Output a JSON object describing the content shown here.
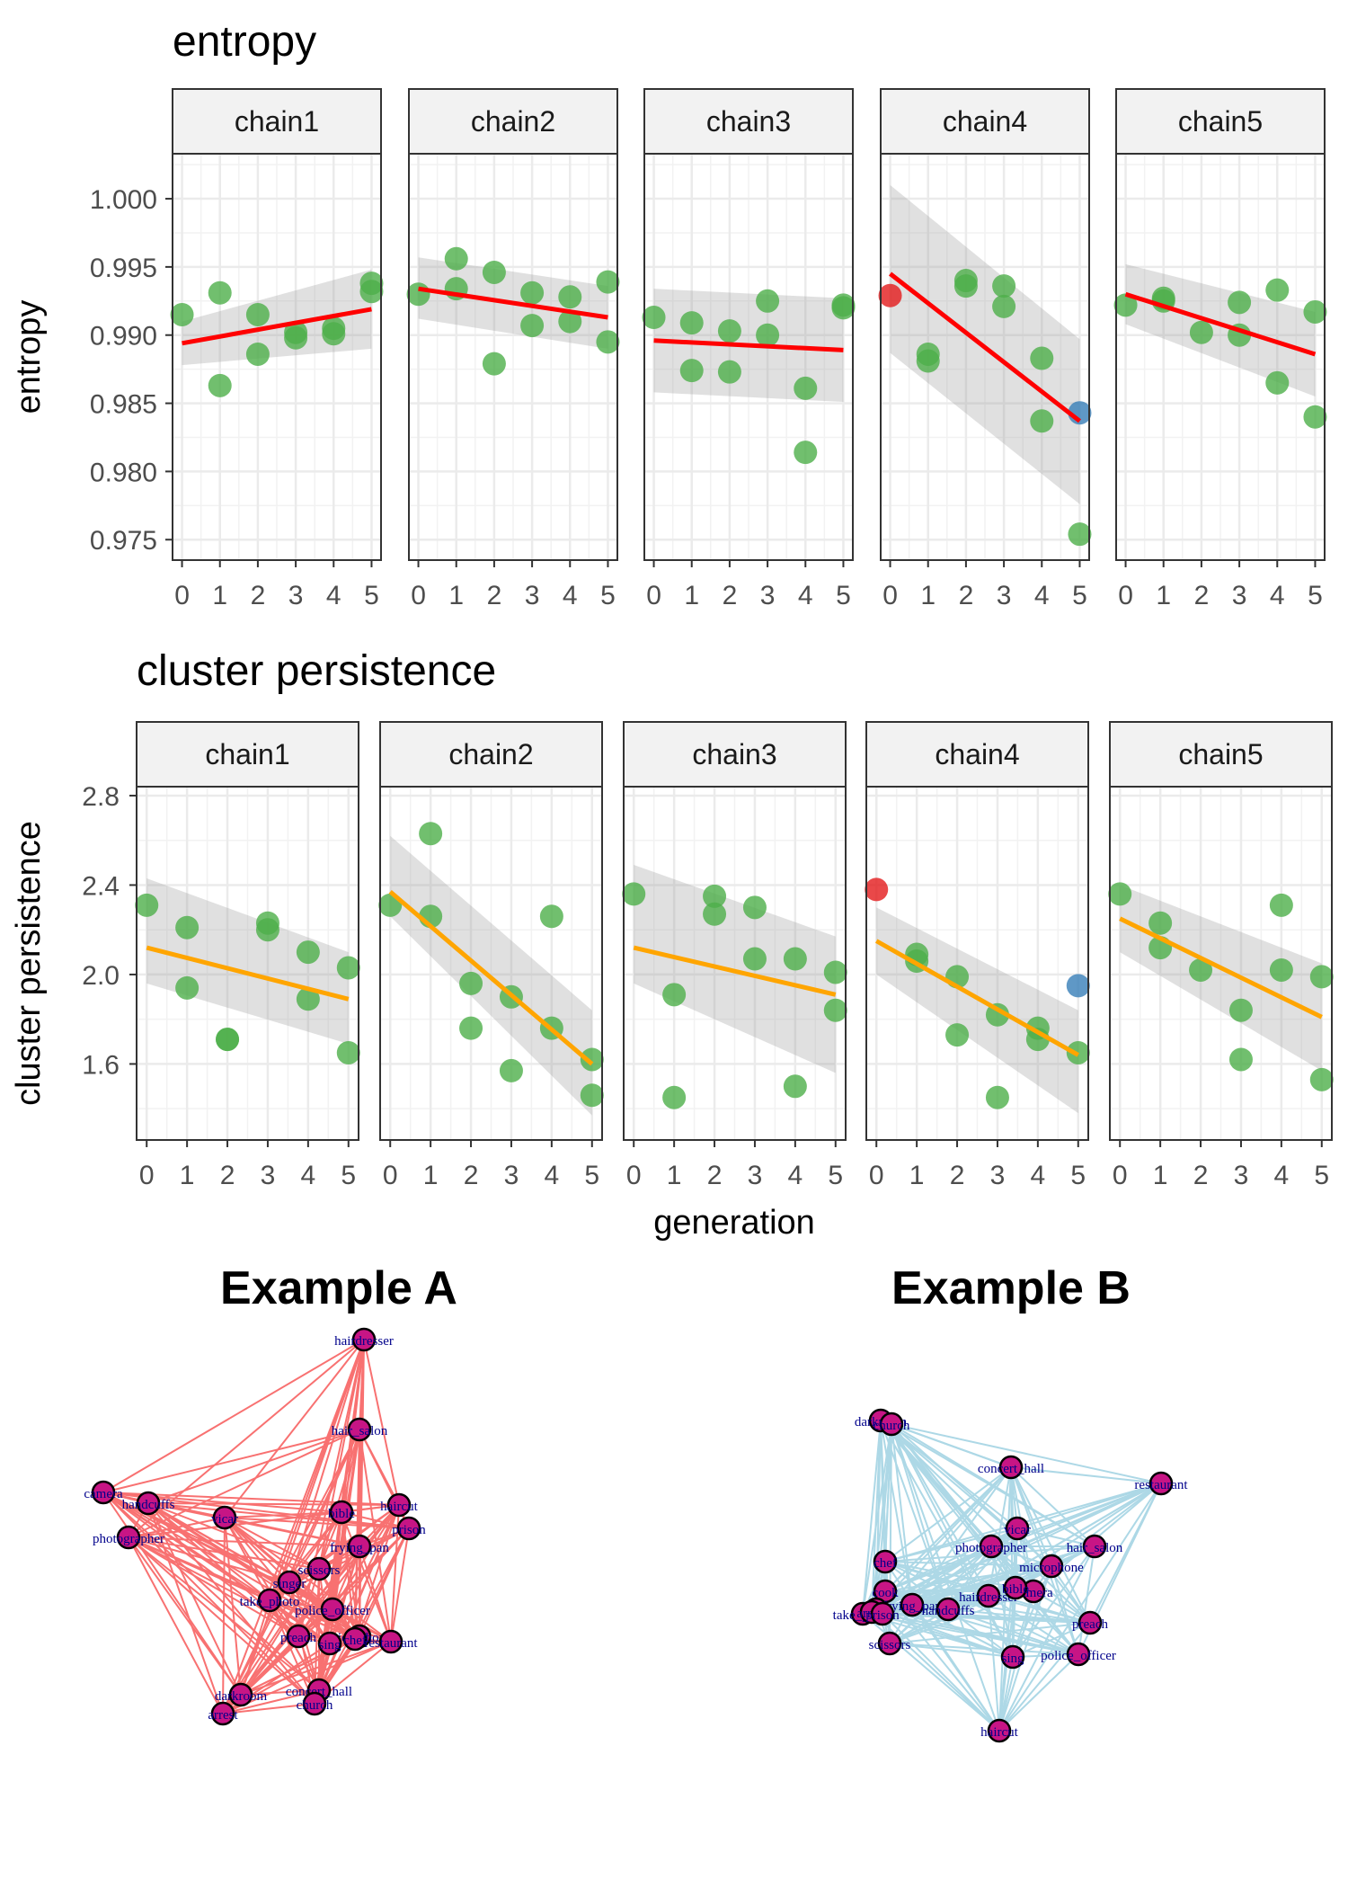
{
  "chart_data": [
    {
      "type": "scatter",
      "title": "entropy",
      "ylabel": "entropy",
      "xlabel": "",
      "ylim": [
        0.9735,
        1.0033
      ],
      "xlim": [
        -0.25,
        5.25
      ],
      "yticks": [
        0.975,
        0.98,
        0.985,
        0.99,
        0.995,
        1.0
      ],
      "ytick_labels": [
        "0.975",
        "0.980",
        "0.985",
        "0.990",
        "0.995",
        "1.000"
      ],
      "xticks": [
        "0",
        "1",
        "2",
        "3",
        "4",
        "5"
      ],
      "grid": true,
      "trend_color": "#ff0000",
      "point_color": "#4daf4a",
      "panels": [
        {
          "strip": "chain1",
          "fit": [
            0.9894,
            0.9919
          ],
          "band": [
            [
              0.9878,
              0.991
            ],
            [
              0.989,
              0.9948
            ]
          ],
          "points": [
            {
              "x": 0,
              "y": 0.9915
            },
            {
              "x": 1,
              "y": 0.9931
            },
            {
              "x": 1,
              "y": 0.9863
            },
            {
              "x": 2,
              "y": 0.9915
            },
            {
              "x": 2,
              "y": 0.9886
            },
            {
              "x": 3,
              "y": 0.9898
            },
            {
              "x": 3,
              "y": 0.9902
            },
            {
              "x": 4,
              "y": 0.9901
            },
            {
              "x": 4,
              "y": 0.9905
            },
            {
              "x": 5,
              "y": 0.9938
            },
            {
              "x": 5,
              "y": 0.9932
            }
          ]
        },
        {
          "strip": "chain2",
          "fit": [
            0.9934,
            0.9913
          ],
          "band": [
            [
              0.9912,
              0.9957
            ],
            [
              0.989,
              0.9936
            ]
          ],
          "points": [
            {
              "x": 0,
              "y": 0.993
            },
            {
              "x": 1,
              "y": 0.9956
            },
            {
              "x": 1,
              "y": 0.9934
            },
            {
              "x": 2,
              "y": 0.9946
            },
            {
              "x": 2,
              "y": 0.9879
            },
            {
              "x": 3,
              "y": 0.9931
            },
            {
              "x": 3,
              "y": 0.9907
            },
            {
              "x": 4,
              "y": 0.9928
            },
            {
              "x": 4,
              "y": 0.991
            },
            {
              "x": 5,
              "y": 0.9939
            },
            {
              "x": 5,
              "y": 0.9895
            }
          ]
        },
        {
          "strip": "chain3",
          "fit": [
            0.9896,
            0.9889
          ],
          "band": [
            [
              0.9858,
              0.9934
            ],
            [
              0.9851,
              0.9927
            ]
          ],
          "points": [
            {
              "x": 0,
              "y": 0.9913
            },
            {
              "x": 1,
              "y": 0.9909
            },
            {
              "x": 1,
              "y": 0.9874
            },
            {
              "x": 2,
              "y": 0.9903
            },
            {
              "x": 2,
              "y": 0.9873
            },
            {
              "x": 3,
              "y": 0.9925
            },
            {
              "x": 3,
              "y": 0.99
            },
            {
              "x": 4,
              "y": 0.9861
            },
            {
              "x": 4,
              "y": 0.9814
            },
            {
              "x": 5,
              "y": 0.9922
            },
            {
              "x": 5,
              "y": 0.992
            }
          ]
        },
        {
          "strip": "chain4",
          "fit": [
            0.9945,
            0.9837
          ],
          "band": [
            [
              0.9887,
              1.001
            ],
            [
              0.9776,
              0.9897
            ]
          ],
          "points": [
            {
              "x": 0,
              "y": 0.9929,
              "group": "start"
            },
            {
              "x": 1,
              "y": 0.9886
            },
            {
              "x": 1,
              "y": 0.9881
            },
            {
              "x": 2,
              "y": 0.994
            },
            {
              "x": 2,
              "y": 0.9936
            },
            {
              "x": 3,
              "y": 0.9936
            },
            {
              "x": 3,
              "y": 0.9921
            },
            {
              "x": 4,
              "y": 0.9883
            },
            {
              "x": 4,
              "y": 0.9837
            },
            {
              "x": 5,
              "y": 0.9843,
              "group": "end"
            },
            {
              "x": 5,
              "y": 0.9754
            }
          ]
        },
        {
          "strip": "chain5",
          "fit": [
            0.993,
            0.9886
          ],
          "band": [
            [
              0.9908,
              0.9952
            ],
            [
              0.9855,
              0.9917
            ]
          ],
          "points": [
            {
              "x": 0,
              "y": 0.9922
            },
            {
              "x": 1,
              "y": 0.9927
            },
            {
              "x": 1,
              "y": 0.9925
            },
            {
              "x": 2,
              "y": 0.9902
            },
            {
              "x": 3,
              "y": 0.9924
            },
            {
              "x": 3,
              "y": 0.99
            },
            {
              "x": 4,
              "y": 0.9933
            },
            {
              "x": 4,
              "y": 0.9865
            },
            {
              "x": 5,
              "y": 0.9917
            },
            {
              "x": 5,
              "y": 0.984
            }
          ]
        }
      ]
    },
    {
      "type": "scatter",
      "title": "cluster persistence",
      "ylabel": "cluster persistence",
      "xlabel": "generation",
      "ylim": [
        1.26,
        2.84
      ],
      "xlim": [
        -0.25,
        5.25
      ],
      "yticks": [
        1.6,
        2.0,
        2.4,
        2.8
      ],
      "ytick_labels": [
        "1.6",
        "2.0",
        "2.4",
        "2.8"
      ],
      "xticks": [
        "0",
        "1",
        "2",
        "3",
        "4",
        "5"
      ],
      "grid": true,
      "trend_color": "#ffa500",
      "point_color": "#4daf4a",
      "panels": [
        {
          "strip": "chain1",
          "fit": [
            2.12,
            1.89
          ],
          "band": [
            [
              1.96,
              2.43
            ],
            [
              1.69,
              2.1
            ]
          ],
          "points": [
            {
              "x": 0,
              "y": 2.31
            },
            {
              "x": 1,
              "y": 2.21
            },
            {
              "x": 1,
              "y": 1.94
            },
            {
              "x": 2,
              "y": 1.71
            },
            {
              "x": 2,
              "y": 1.71
            },
            {
              "x": 3,
              "y": 2.23
            },
            {
              "x": 3,
              "y": 2.2
            },
            {
              "x": 4,
              "y": 2.1
            },
            {
              "x": 4,
              "y": 1.89
            },
            {
              "x": 5,
              "y": 2.03
            },
            {
              "x": 5,
              "y": 1.65
            }
          ]
        },
        {
          "strip": "chain2",
          "fit": [
            2.37,
            1.6
          ],
          "band": [
            [
              2.26,
              2.62
            ],
            [
              1.37,
              1.84
            ]
          ],
          "points": [
            {
              "x": 0,
              "y": 2.31
            },
            {
              "x": 1,
              "y": 2.63
            },
            {
              "x": 1,
              "y": 2.26
            },
            {
              "x": 2,
              "y": 1.96
            },
            {
              "x": 2,
              "y": 1.76
            },
            {
              "x": 3,
              "y": 1.9
            },
            {
              "x": 3,
              "y": 1.57
            },
            {
              "x": 4,
              "y": 2.26
            },
            {
              "x": 4,
              "y": 1.76
            },
            {
              "x": 5,
              "y": 1.62
            },
            {
              "x": 5,
              "y": 1.46
            }
          ]
        },
        {
          "strip": "chain3",
          "fit": [
            2.12,
            1.91
          ],
          "band": [
            [
              1.96,
              2.49
            ],
            [
              1.56,
              2.17
            ]
          ],
          "points": [
            {
              "x": 0,
              "y": 2.36
            },
            {
              "x": 1,
              "y": 1.91
            },
            {
              "x": 1,
              "y": 1.45
            },
            {
              "x": 2,
              "y": 2.35
            },
            {
              "x": 2,
              "y": 2.27
            },
            {
              "x": 3,
              "y": 2.3
            },
            {
              "x": 3,
              "y": 2.07
            },
            {
              "x": 4,
              "y": 2.07
            },
            {
              "x": 4,
              "y": 1.5
            },
            {
              "x": 5,
              "y": 2.01
            },
            {
              "x": 5,
              "y": 1.84
            }
          ]
        },
        {
          "strip": "chain4",
          "fit": [
            2.15,
            1.64
          ],
          "band": [
            [
              2.0,
              2.3
            ],
            [
              1.38,
              1.84
            ]
          ],
          "points": [
            {
              "x": 0,
              "y": 2.38,
              "group": "start"
            },
            {
              "x": 1,
              "y": 2.09
            },
            {
              "x": 1,
              "y": 2.06
            },
            {
              "x": 2,
              "y": 1.99
            },
            {
              "x": 2,
              "y": 1.73
            },
            {
              "x": 3,
              "y": 1.82
            },
            {
              "x": 3,
              "y": 1.45
            },
            {
              "x": 4,
              "y": 1.76
            },
            {
              "x": 4,
              "y": 1.71
            },
            {
              "x": 5,
              "y": 1.95,
              "group": "end"
            },
            {
              "x": 5,
              "y": 1.65
            }
          ]
        },
        {
          "strip": "chain5",
          "fit": [
            2.25,
            1.81
          ],
          "band": [
            [
              2.1,
              2.4
            ],
            [
              1.57,
              2.05
            ]
          ],
          "points": [
            {
              "x": 0,
              "y": 2.36
            },
            {
              "x": 1,
              "y": 2.23
            },
            {
              "x": 1,
              "y": 2.12
            },
            {
              "x": 2,
              "y": 2.02
            },
            {
              "x": 3,
              "y": 1.84
            },
            {
              "x": 3,
              "y": 1.62
            },
            {
              "x": 4,
              "y": 2.31
            },
            {
              "x": 4,
              "y": 2.02
            },
            {
              "x": 5,
              "y": 1.99
            },
            {
              "x": 5,
              "y": 1.53
            }
          ]
        }
      ]
    }
  ],
  "networks": [
    {
      "title": "Example A",
      "edge_color": "#f87171",
      "node_color": "#c71585",
      "label_color": "#00008b",
      "nodes": [
        {
          "label": "hairdresser"
        },
        {
          "label": "hair_salon"
        },
        {
          "label": "camera"
        },
        {
          "label": "handcuffs"
        },
        {
          "label": "vicar"
        },
        {
          "label": "photographer"
        },
        {
          "label": "bible"
        },
        {
          "label": "haircut"
        },
        {
          "label": "prison"
        },
        {
          "label": "frying_pan"
        },
        {
          "label": "scissors"
        },
        {
          "label": "singer"
        },
        {
          "label": "take_photo"
        },
        {
          "label": "police_officer"
        },
        {
          "label": "preach"
        },
        {
          "label": "microphone"
        },
        {
          "label": "sing"
        },
        {
          "label": "chef"
        },
        {
          "label": "restaurant"
        },
        {
          "label": "darkroom"
        },
        {
          "label": "arrest"
        },
        {
          "label": "concert_hall"
        },
        {
          "label": "church"
        }
      ]
    },
    {
      "title": "Example B",
      "edge_color": "#add8e6",
      "node_color": "#c71585",
      "label_color": "#00008b",
      "nodes": [
        {
          "label": "darkroom"
        },
        {
          "label": "church"
        },
        {
          "label": "concert_hall"
        },
        {
          "label": "restaurant"
        },
        {
          "label": "vicar"
        },
        {
          "label": "photographer"
        },
        {
          "label": "hair_salon"
        },
        {
          "label": "microphone"
        },
        {
          "label": "chef"
        },
        {
          "label": "cook"
        },
        {
          "label": "singer"
        },
        {
          "label": "frying_pan"
        },
        {
          "label": "take_photo"
        },
        {
          "label": "hairdresser"
        },
        {
          "label": "camera"
        },
        {
          "label": "handcuffs"
        },
        {
          "label": "bible"
        },
        {
          "label": "arrest"
        },
        {
          "label": "prison"
        },
        {
          "label": "preach"
        },
        {
          "label": "scissors"
        },
        {
          "label": "sing"
        },
        {
          "label": "police_officer"
        },
        {
          "label": "haircut"
        }
      ]
    }
  ]
}
